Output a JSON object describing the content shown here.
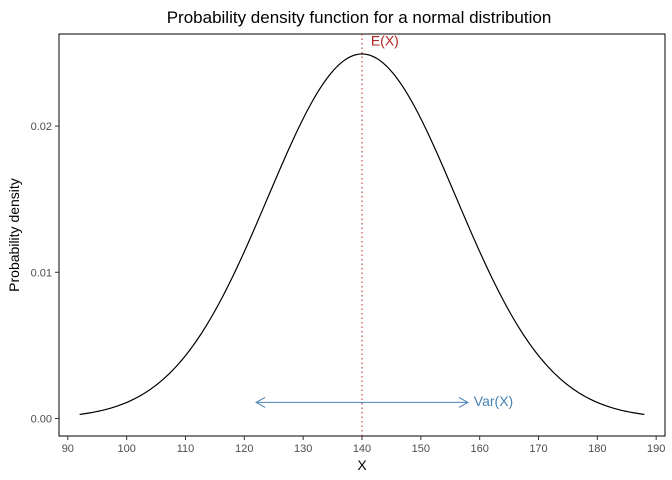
{
  "chart_data": {
    "type": "line",
    "title": "Probability density function for a normal distribution",
    "xlabel": "X",
    "ylabel": "Probability density",
    "xlim": [
      88.5,
      191.5
    ],
    "ylim": [
      -0.0012,
      0.0263
    ],
    "x_ticks": [
      90,
      100,
      110,
      120,
      130,
      140,
      150,
      160,
      170,
      180,
      190
    ],
    "x_tick_labels": [
      "90",
      "100",
      "110",
      "120",
      "130",
      "140",
      "150",
      "160",
      "170",
      "180",
      "190"
    ],
    "y_ticks": [
      0,
      0.01,
      0.02
    ],
    "y_tick_labels": [
      "0.00",
      "0.01",
      "0.02"
    ],
    "grid": false,
    "series": [
      {
        "distribution": "normal",
        "mean": 140,
        "sd": 16,
        "x_range": [
          92,
          188
        ],
        "color": "#000000"
      }
    ],
    "annotations": {
      "mean_line": {
        "x": 140,
        "color": "#b22222",
        "style": "dotted"
      },
      "mean_label": {
        "text": "E(X)",
        "x": 141.5,
        "y": 0.0255,
        "color": "#b22222"
      },
      "variance_arrow": {
        "x_start": 122,
        "x_end": 158,
        "y": 0.0011,
        "color": "#4682b4"
      },
      "variance_label": {
        "text": "Var(X)",
        "x": 159,
        "y": 0.0011,
        "color": "#4682b4"
      }
    }
  }
}
